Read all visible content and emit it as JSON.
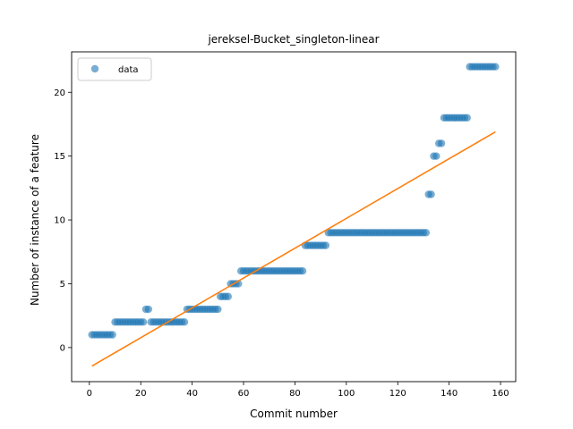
{
  "chart_data": {
    "type": "scatter",
    "title": "jereksel-Bucket_singleton-linear",
    "xlabel": "Commit number",
    "ylabel": "Number of instance of a feature",
    "xlim": [
      -6.9,
      165.9
    ],
    "ylim": [
      -2.67,
      23.17
    ],
    "xticks": [
      0,
      20,
      40,
      60,
      80,
      100,
      120,
      140,
      160
    ],
    "yticks": [
      0,
      5,
      10,
      15,
      20
    ],
    "legend": {
      "position": "top-left",
      "entries": [
        "data"
      ]
    },
    "colors": {
      "data": "#1f77b4",
      "fit": "#ff7f0e"
    },
    "grid": false,
    "series": [
      {
        "name": "data",
        "kind": "scatter",
        "segments": [
          {
            "x_start": 1,
            "x_end": 9,
            "y": 1
          },
          {
            "x_start": 10,
            "x_end": 21,
            "y": 2
          },
          {
            "x_start": 22,
            "x_end": 23,
            "y": 3
          },
          {
            "x_start": 24,
            "x_end": 37,
            "y": 2
          },
          {
            "x_start": 38,
            "x_end": 50,
            "y": 3
          },
          {
            "x_start": 51,
            "x_end": 54,
            "y": 4
          },
          {
            "x_start": 55,
            "x_end": 58,
            "y": 5
          },
          {
            "x_start": 59,
            "x_end": 83,
            "y": 6
          },
          {
            "x_start": 84,
            "x_end": 92,
            "y": 8
          },
          {
            "x_start": 93,
            "x_end": 131,
            "y": 9
          },
          {
            "x_start": 132,
            "x_end": 133,
            "y": 12
          },
          {
            "x_start": 134,
            "x_end": 135,
            "y": 15
          },
          {
            "x_start": 136,
            "x_end": 137,
            "y": 16
          },
          {
            "x_start": 138,
            "x_end": 147,
            "y": 18
          },
          {
            "x_start": 148,
            "x_end": 158,
            "y": 22
          }
        ]
      },
      {
        "name": "",
        "kind": "line",
        "x": [
          1,
          158
        ],
        "y": [
          -1.45,
          16.9
        ]
      }
    ]
  }
}
